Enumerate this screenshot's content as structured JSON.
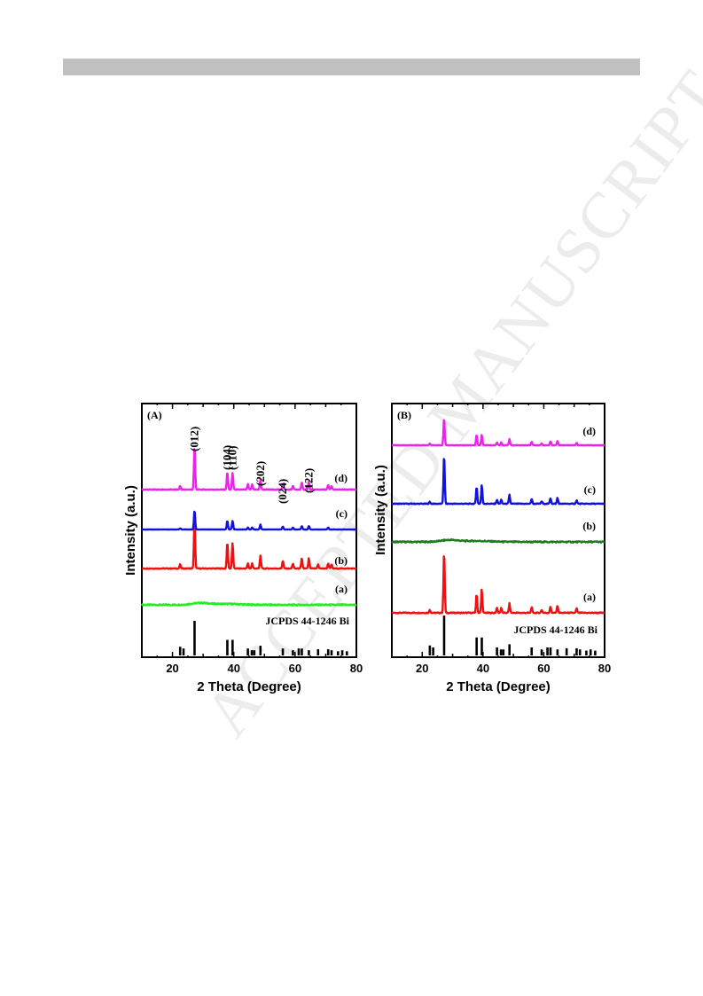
{
  "page": {
    "watermark_text": "ACCEPTED MANUSCRIPT",
    "header_bar_color": "#c0c0c0"
  },
  "chart_data": [
    {
      "type": "line",
      "panel_label": "(A)",
      "xlabel": "2 Theta (Degree)",
      "ylabel": "Intensity (a.u.)",
      "xlim": [
        10,
        80
      ],
      "x_ticks": [
        20,
        40,
        60,
        80
      ],
      "reference_label": "JCPDS 44-1246 Bi",
      "reference_peaks": [
        {
          "x": 22.5,
          "h": 0.25
        },
        {
          "x": 23.6,
          "h": 0.2
        },
        {
          "x": 27.2,
          "h": 1.0
        },
        {
          "x": 37.9,
          "h": 0.45
        },
        {
          "x": 39.6,
          "h": 0.45
        },
        {
          "x": 44.6,
          "h": 0.2
        },
        {
          "x": 45.9,
          "h": 0.15
        },
        {
          "x": 46.7,
          "h": 0.15
        },
        {
          "x": 48.7,
          "h": 0.28
        },
        {
          "x": 56.0,
          "h": 0.2
        },
        {
          "x": 59.3,
          "h": 0.15
        },
        {
          "x": 61.2,
          "h": 0.2
        },
        {
          "x": 62.2,
          "h": 0.2
        },
        {
          "x": 64.5,
          "h": 0.15
        },
        {
          "x": 67.5,
          "h": 0.18
        },
        {
          "x": 70.8,
          "h": 0.18
        },
        {
          "x": 71.9,
          "h": 0.15
        },
        {
          "x": 74.0,
          "h": 0.12
        },
        {
          "x": 75.4,
          "h": 0.15
        },
        {
          "x": 76.9,
          "h": 0.12
        }
      ],
      "hkl_labels": [
        {
          "text": "(012)",
          "x": 27.2
        },
        {
          "text": "(104)",
          "x": 37.9
        },
        {
          "text": "(110)",
          "x": 39.6
        },
        {
          "text": "(202)",
          "x": 48.7
        },
        {
          "text": "(024)",
          "x": 56.0
        },
        {
          "text": "(122)",
          "x": 64.5
        }
      ],
      "series": [
        {
          "label": "(a)",
          "color": "#22ee22",
          "amorphous": true,
          "peaks": []
        },
        {
          "label": "(b)",
          "color": "#ee1111",
          "amorphous": false,
          "peaks": [
            {
              "x": 22.5,
              "h": 0.08
            },
            {
              "x": 27.2,
              "h": 1.0
            },
            {
              "x": 37.9,
              "h": 0.52
            },
            {
              "x": 39.6,
              "h": 0.5
            },
            {
              "x": 44.6,
              "h": 0.1
            },
            {
              "x": 46.0,
              "h": 0.1
            },
            {
              "x": 48.7,
              "h": 0.25
            },
            {
              "x": 56.0,
              "h": 0.15
            },
            {
              "x": 59.3,
              "h": 0.1
            },
            {
              "x": 62.2,
              "h": 0.2
            },
            {
              "x": 64.5,
              "h": 0.2
            },
            {
              "x": 67.5,
              "h": 0.08
            },
            {
              "x": 70.8,
              "h": 0.1
            },
            {
              "x": 71.9,
              "h": 0.08
            }
          ]
        },
        {
          "label": "(c)",
          "color": "#1111dd",
          "amorphous": false,
          "peaks": [
            {
              "x": 22.5,
              "h": 0.06
            },
            {
              "x": 27.2,
              "h": 1.0
            },
            {
              "x": 37.9,
              "h": 0.45
            },
            {
              "x": 39.6,
              "h": 0.45
            },
            {
              "x": 44.6,
              "h": 0.1
            },
            {
              "x": 46.0,
              "h": 0.1
            },
            {
              "x": 48.7,
              "h": 0.25
            },
            {
              "x": 56.0,
              "h": 0.15
            },
            {
              "x": 59.3,
              "h": 0.1
            },
            {
              "x": 62.2,
              "h": 0.18
            },
            {
              "x": 64.5,
              "h": 0.18
            },
            {
              "x": 70.8,
              "h": 0.1
            }
          ]
        },
        {
          "label": "(d)",
          "color": "#ee22ee",
          "amorphous": false,
          "peaks": [
            {
              "x": 22.5,
              "h": 0.08
            },
            {
              "x": 27.2,
              "h": 1.0
            },
            {
              "x": 37.9,
              "h": 0.4
            },
            {
              "x": 39.6,
              "h": 0.38
            },
            {
              "x": 44.6,
              "h": 0.12
            },
            {
              "x": 46.0,
              "h": 0.12
            },
            {
              "x": 48.7,
              "h": 0.22
            },
            {
              "x": 56.0,
              "h": 0.14
            },
            {
              "x": 59.3,
              "h": 0.08
            },
            {
              "x": 62.2,
              "h": 0.16
            },
            {
              "x": 64.5,
              "h": 0.18
            },
            {
              "x": 70.8,
              "h": 0.1
            },
            {
              "x": 71.9,
              "h": 0.08
            }
          ]
        }
      ]
    },
    {
      "type": "line",
      "panel_label": "(B)",
      "xlabel": "2 Theta (Degree)",
      "ylabel": "Intensity (a.u.)",
      "xlim": [
        10,
        80
      ],
      "x_ticks": [
        20,
        40,
        60,
        80
      ],
      "reference_label": "JCPDS 44-1246 Bi",
      "reference_peaks": [
        {
          "x": 22.5,
          "h": 0.25
        },
        {
          "x": 23.6,
          "h": 0.2
        },
        {
          "x": 27.2,
          "h": 1.0
        },
        {
          "x": 37.9,
          "h": 0.45
        },
        {
          "x": 39.6,
          "h": 0.45
        },
        {
          "x": 44.6,
          "h": 0.2
        },
        {
          "x": 45.9,
          "h": 0.15
        },
        {
          "x": 46.7,
          "h": 0.15
        },
        {
          "x": 48.7,
          "h": 0.28
        },
        {
          "x": 56.0,
          "h": 0.2
        },
        {
          "x": 59.3,
          "h": 0.15
        },
        {
          "x": 61.2,
          "h": 0.2
        },
        {
          "x": 62.2,
          "h": 0.2
        },
        {
          "x": 64.5,
          "h": 0.15
        },
        {
          "x": 67.5,
          "h": 0.18
        },
        {
          "x": 70.8,
          "h": 0.18
        },
        {
          "x": 71.9,
          "h": 0.15
        },
        {
          "x": 74.0,
          "h": 0.12
        },
        {
          "x": 75.4,
          "h": 0.15
        },
        {
          "x": 76.9,
          "h": 0.12
        }
      ],
      "hkl_labels": [],
      "series": [
        {
          "label": "(a)",
          "color": "#ee1111",
          "amorphous": false,
          "peaks": [
            {
              "x": 22.5,
              "h": 0.05
            },
            {
              "x": 27.2,
              "h": 1.0
            },
            {
              "x": 37.9,
              "h": 0.3
            },
            {
              "x": 39.6,
              "h": 0.38
            },
            {
              "x": 44.6,
              "h": 0.08
            },
            {
              "x": 46.0,
              "h": 0.08
            },
            {
              "x": 48.7,
              "h": 0.15
            },
            {
              "x": 56.0,
              "h": 0.09
            },
            {
              "x": 59.3,
              "h": 0.05
            },
            {
              "x": 62.2,
              "h": 0.1
            },
            {
              "x": 64.5,
              "h": 0.12
            },
            {
              "x": 70.8,
              "h": 0.07
            }
          ]
        },
        {
          "label": "(b)",
          "color": "#1f7a1f",
          "amorphous": true,
          "peaks": []
        },
        {
          "label": "(c)",
          "color": "#1111dd",
          "amorphous": false,
          "peaks": [
            {
              "x": 22.5,
              "h": 0.04
            },
            {
              "x": 27.2,
              "h": 1.0
            },
            {
              "x": 37.9,
              "h": 0.35
            },
            {
              "x": 39.6,
              "h": 0.38
            },
            {
              "x": 44.6,
              "h": 0.08
            },
            {
              "x": 46.0,
              "h": 0.08
            },
            {
              "x": 48.7,
              "h": 0.18
            },
            {
              "x": 56.0,
              "h": 0.1
            },
            {
              "x": 59.3,
              "h": 0.05
            },
            {
              "x": 62.2,
              "h": 0.12
            },
            {
              "x": 64.5,
              "h": 0.12
            },
            {
              "x": 70.8,
              "h": 0.07
            }
          ]
        },
        {
          "label": "(d)",
          "color": "#ee22ee",
          "amorphous": false,
          "peaks": [
            {
              "x": 22.5,
              "h": 0.06
            },
            {
              "x": 27.2,
              "h": 1.0
            },
            {
              "x": 37.9,
              "h": 0.38
            },
            {
              "x": 39.6,
              "h": 0.38
            },
            {
              "x": 44.6,
              "h": 0.1
            },
            {
              "x": 46.0,
              "h": 0.1
            },
            {
              "x": 48.7,
              "h": 0.22
            },
            {
              "x": 56.0,
              "h": 0.12
            },
            {
              "x": 59.3,
              "h": 0.06
            },
            {
              "x": 62.2,
              "h": 0.14
            },
            {
              "x": 64.5,
              "h": 0.16
            },
            {
              "x": 70.8,
              "h": 0.08
            }
          ]
        }
      ]
    }
  ]
}
